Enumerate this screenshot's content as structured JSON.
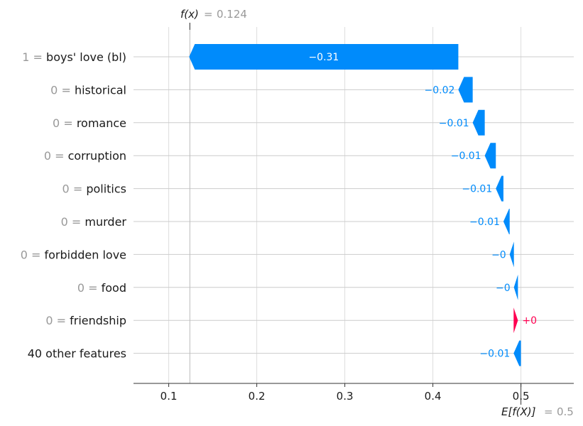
{
  "chart_data": {
    "type": "waterfall",
    "fx_label": "f(x)",
    "fx_value": "0.124",
    "base_label": "E[f(X)]",
    "base_value": "0.5",
    "xlim": [
      0.06,
      0.56
    ],
    "xticks": [
      "0.1",
      "0.2",
      "0.3",
      "0.4",
      "0.5"
    ],
    "features": [
      {
        "value": "1",
        "name": "boys' love (bl)",
        "shap": -0.3057,
        "label": "−0.31"
      },
      {
        "value": "0",
        "name": "historical",
        "shap": -0.0163,
        "label": "−0.02"
      },
      {
        "value": "0",
        "name": "romance",
        "shap": -0.0137,
        "label": "−0.01"
      },
      {
        "value": "0",
        "name": "corruption",
        "shap": -0.0126,
        "label": "−0.01"
      },
      {
        "value": "0",
        "name": "politics",
        "shap": -0.0086,
        "label": "−0.01"
      },
      {
        "value": "0",
        "name": "murder",
        "shap": -0.0071,
        "label": "−0.01"
      },
      {
        "value": "0",
        "name": "forbidden love",
        "shap": -0.0048,
        "label": "−0"
      },
      {
        "value": "0",
        "name": "food",
        "shap": -0.0046,
        "label": "−0"
      },
      {
        "value": "0",
        "name": "friendship",
        "shap": 0.0049,
        "label": "+0"
      },
      {
        "value": "",
        "name": "40 other features",
        "shap": -0.0083,
        "label": "−0.01"
      }
    ],
    "colors": {
      "negative": "#008bfb",
      "positive": "#ff0051",
      "grid": "#cccccc",
      "muted": "#999999",
      "text": "#1a1a1a"
    }
  }
}
